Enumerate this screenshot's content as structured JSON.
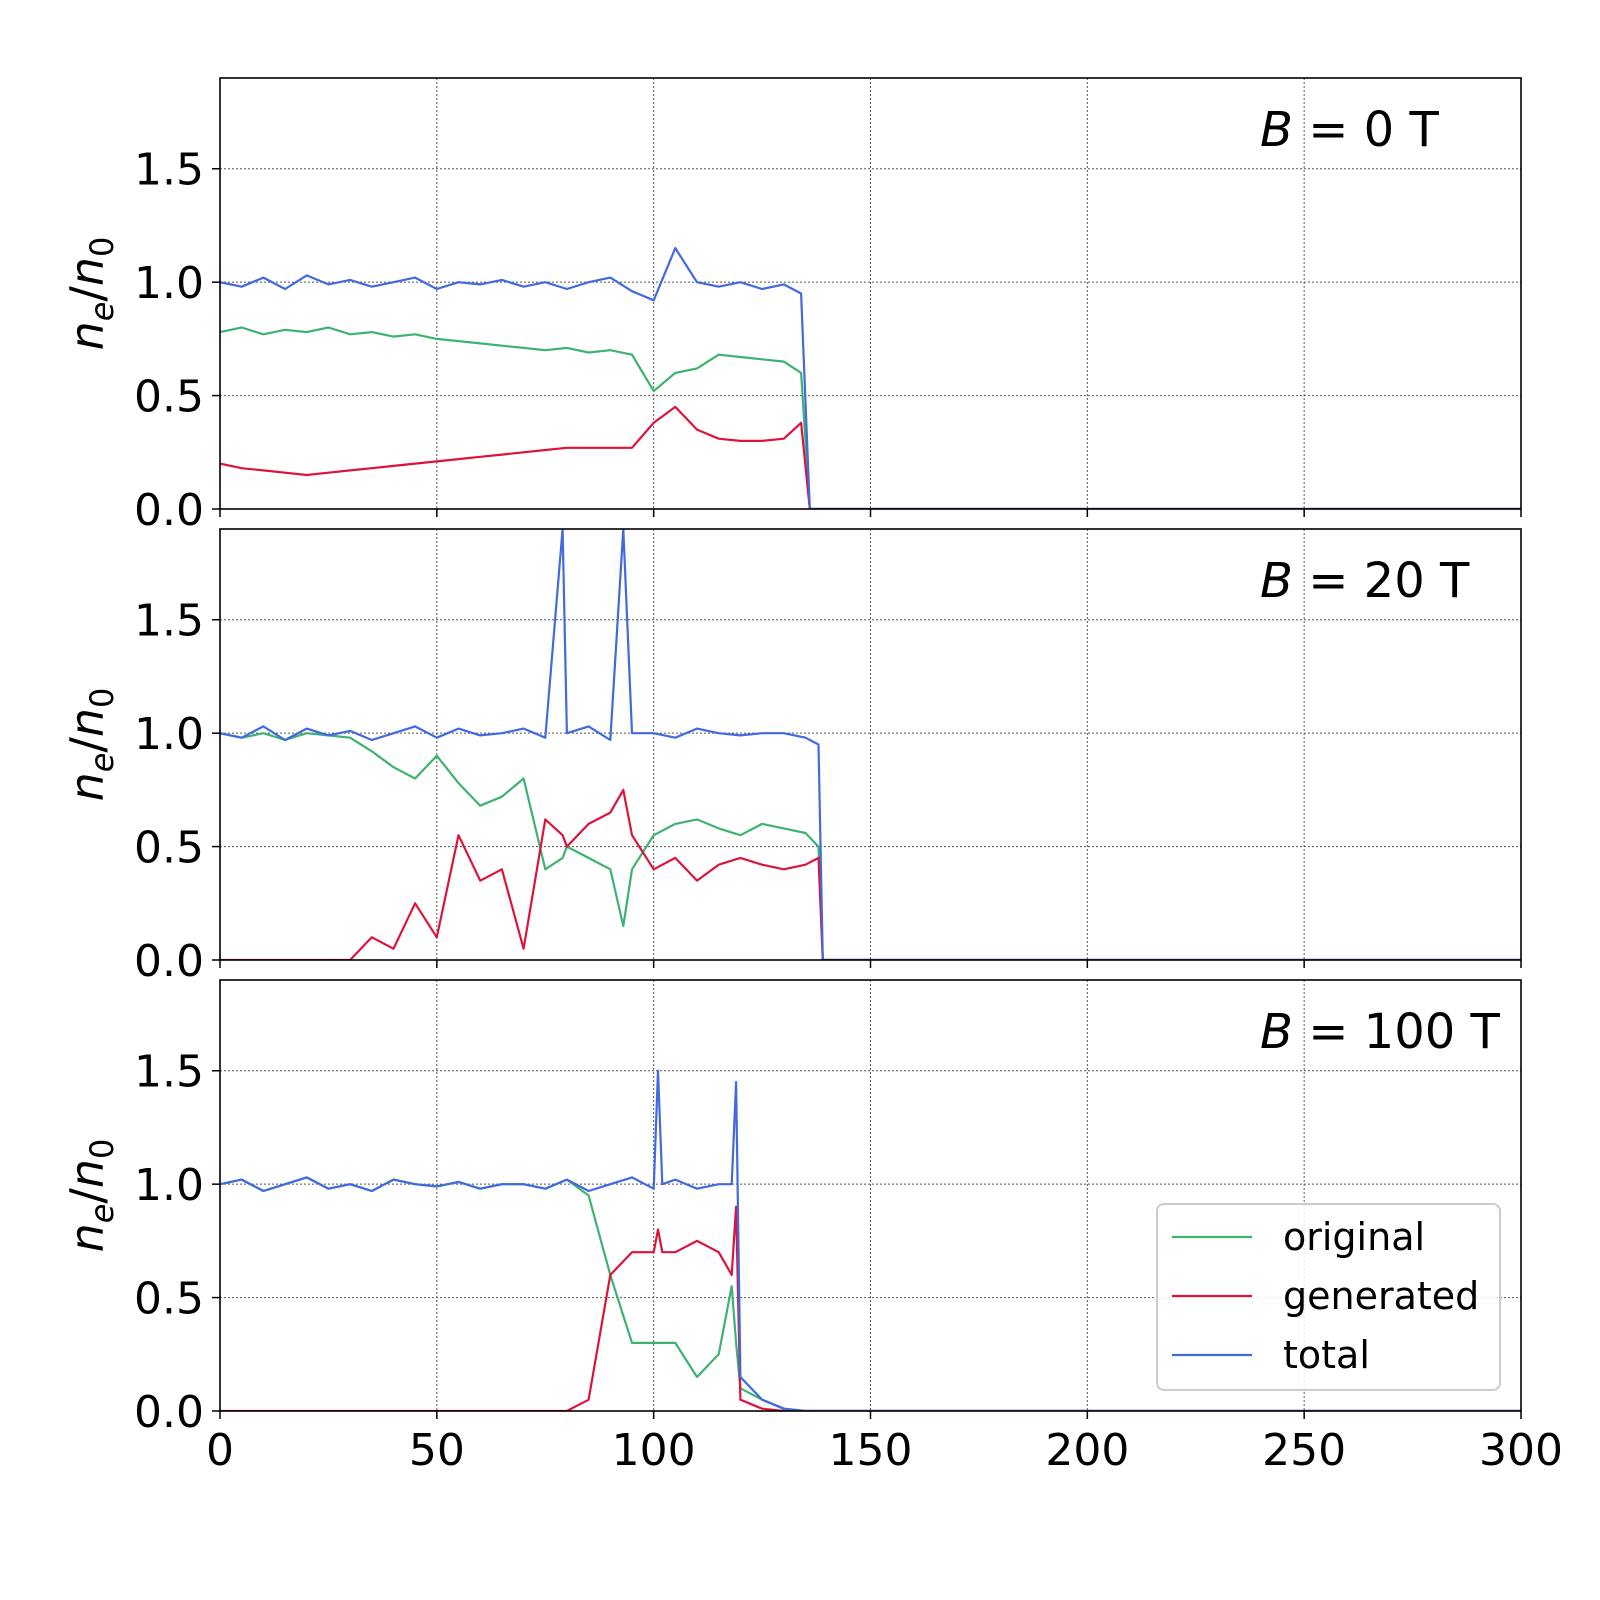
{
  "chart_data": [
    {
      "type": "line",
      "title": "B = 0 T",
      "title_var": "B",
      "title_rest": " = 0 T",
      "xlabel": "",
      "ylabel": "n_e/n_0",
      "xlim": [
        0,
        300
      ],
      "ylim": [
        0,
        1.9
      ],
      "xticks": [
        "0",
        "50",
        "100",
        "150",
        "200",
        "250",
        "300"
      ],
      "xtick_labels_shown": false,
      "yticks": [
        "0.0",
        "0.5",
        "1.0",
        "1.5"
      ],
      "grid": true,
      "x": [
        0,
        5,
        10,
        15,
        20,
        25,
        30,
        35,
        40,
        45,
        50,
        55,
        60,
        65,
        70,
        75,
        80,
        85,
        90,
        95,
        100,
        105,
        110,
        115,
        120,
        125,
        130,
        134,
        136,
        300
      ],
      "series": [
        {
          "name": "original",
          "color": "#3cb371",
          "values": [
            0.78,
            0.8,
            0.77,
            0.79,
            0.78,
            0.8,
            0.77,
            0.78,
            0.76,
            0.77,
            0.75,
            0.74,
            0.73,
            0.72,
            0.71,
            0.7,
            0.71,
            0.69,
            0.7,
            0.68,
            0.52,
            0.6,
            0.62,
            0.68,
            0.67,
            0.66,
            0.65,
            0.6,
            0,
            0
          ]
        },
        {
          "name": "generated",
          "color": "#dc143c",
          "values": [
            0.2,
            0.18,
            0.17,
            0.16,
            0.15,
            0.16,
            0.17,
            0.18,
            0.19,
            0.2,
            0.21,
            0.22,
            0.23,
            0.24,
            0.25,
            0.26,
            0.27,
            0.27,
            0.27,
            0.27,
            0.38,
            0.45,
            0.35,
            0.31,
            0.3,
            0.3,
            0.31,
            0.38,
            0,
            0
          ]
        },
        {
          "name": "total",
          "color": "#4169e1",
          "values": [
            1.0,
            0.98,
            1.02,
            0.97,
            1.03,
            0.99,
            1.01,
            0.98,
            1.0,
            1.02,
            0.97,
            1.0,
            0.99,
            1.01,
            0.98,
            1.0,
            0.97,
            1.0,
            1.02,
            0.96,
            0.92,
            1.15,
            1.0,
            0.98,
            1.0,
            0.97,
            0.99,
            0.95,
            0,
            0
          ]
        }
      ]
    },
    {
      "type": "line",
      "title": "B = 20 T",
      "title_var": "B",
      "title_rest": " = 20 T",
      "xlabel": "",
      "ylabel": "n_e/n_0",
      "xlim": [
        0,
        300
      ],
      "ylim": [
        0,
        1.9
      ],
      "xticks": [
        "0",
        "50",
        "100",
        "150",
        "200",
        "250",
        "300"
      ],
      "xtick_labels_shown": false,
      "yticks": [
        "0.0",
        "0.5",
        "1.0",
        "1.5"
      ],
      "grid": true,
      "x": [
        0,
        5,
        10,
        15,
        20,
        25,
        30,
        35,
        40,
        45,
        50,
        55,
        60,
        65,
        70,
        75,
        79,
        80,
        85,
        90,
        93,
        95,
        100,
        105,
        110,
        115,
        120,
        125,
        130,
        135,
        138,
        139,
        300
      ],
      "series": [
        {
          "name": "original",
          "color": "#3cb371",
          "values": [
            1.0,
            0.98,
            1.0,
            0.97,
            1.0,
            0.99,
            0.98,
            0.92,
            0.85,
            0.8,
            0.9,
            0.78,
            0.68,
            0.72,
            0.8,
            0.4,
            0.45,
            0.5,
            0.45,
            0.4,
            0.15,
            0.4,
            0.55,
            0.6,
            0.62,
            0.58,
            0.55,
            0.6,
            0.58,
            0.56,
            0.5,
            0,
            0
          ]
        },
        {
          "name": "generated",
          "color": "#dc143c",
          "values": [
            0,
            0,
            0,
            0,
            0,
            0,
            0,
            0.1,
            0.05,
            0.25,
            0.1,
            0.55,
            0.35,
            0.4,
            0.05,
            0.62,
            0.55,
            0.5,
            0.6,
            0.65,
            0.75,
            0.55,
            0.4,
            0.45,
            0.35,
            0.42,
            0.45,
            0.42,
            0.4,
            0.42,
            0.45,
            0,
            0
          ]
        },
        {
          "name": "total",
          "color": "#4169e1",
          "values": [
            1.0,
            0.98,
            1.03,
            0.97,
            1.02,
            0.99,
            1.01,
            0.97,
            1.0,
            1.03,
            0.98,
            1.02,
            0.99,
            1.0,
            1.02,
            0.98,
            1.9,
            1.0,
            1.03,
            0.97,
            1.9,
            1.0,
            1.0,
            0.98,
            1.02,
            1.0,
            0.99,
            1.0,
            1.0,
            0.98,
            0.95,
            0,
            0
          ]
        }
      ]
    },
    {
      "type": "line",
      "title": "B = 100 T",
      "title_var": "B",
      "title_rest": " = 100 T",
      "xlabel": "",
      "ylabel": "n_e/n_0",
      "xlim": [
        0,
        300
      ],
      "ylim": [
        0,
        1.9
      ],
      "xticks": [
        "0",
        "50",
        "100",
        "150",
        "200",
        "250",
        "300"
      ],
      "xtick_labels_shown": true,
      "yticks": [
        "0.0",
        "0.5",
        "1.0",
        "1.5"
      ],
      "grid": true,
      "legend": {
        "placement": "lower-right",
        "entries": [
          "original",
          "generated",
          "total"
        ]
      },
      "x": [
        0,
        5,
        10,
        15,
        20,
        25,
        30,
        35,
        40,
        45,
        50,
        55,
        60,
        65,
        70,
        75,
        80,
        85,
        90,
        95,
        100,
        101,
        102,
        105,
        110,
        115,
        118,
        119,
        120,
        125,
        130,
        135,
        300
      ],
      "series": [
        {
          "name": "original",
          "color": "#3cb371",
          "values": [
            1.0,
            1.02,
            0.97,
            1.0,
            1.03,
            0.98,
            1.0,
            0.97,
            1.02,
            1.0,
            0.99,
            1.01,
            0.98,
            1.0,
            1.0,
            0.98,
            1.02,
            0.95,
            0.6,
            0.3,
            0.3,
            0.3,
            0.3,
            0.3,
            0.15,
            0.25,
            0.55,
            0.3,
            0.1,
            0.05,
            0.01,
            0,
            0
          ]
        },
        {
          "name": "generated",
          "color": "#dc143c",
          "values": [
            0,
            0,
            0,
            0,
            0,
            0,
            0,
            0,
            0,
            0,
            0,
            0,
            0,
            0,
            0,
            0,
            0,
            0.05,
            0.6,
            0.7,
            0.7,
            0.8,
            0.7,
            0.7,
            0.75,
            0.7,
            0.6,
            0.9,
            0.05,
            0.01,
            0,
            0,
            0
          ]
        },
        {
          "name": "total",
          "color": "#4169e1",
          "values": [
            1.0,
            1.02,
            0.97,
            1.0,
            1.03,
            0.98,
            1.0,
            0.97,
            1.02,
            1.0,
            0.99,
            1.01,
            0.98,
            1.0,
            1.0,
            0.98,
            1.02,
            0.97,
            1.0,
            1.03,
            0.98,
            1.5,
            1.0,
            1.02,
            0.98,
            1.0,
            1.0,
            1.45,
            0.15,
            0.05,
            0.01,
            0,
            0
          ]
        }
      ]
    }
  ]
}
